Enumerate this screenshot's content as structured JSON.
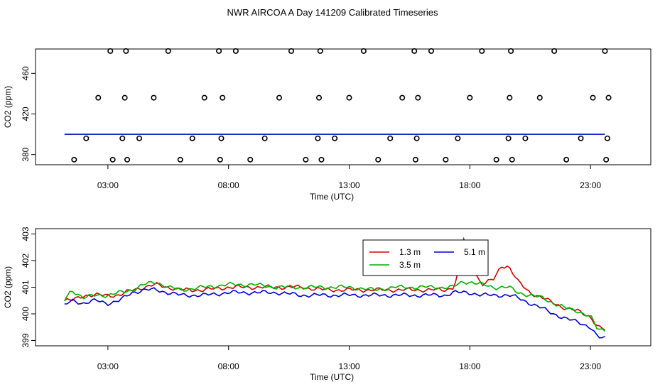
{
  "title": "NWR AIRCOA A  Day 141209  Calibrated Timeseries",
  "chart_data": [
    {
      "type": "scatter",
      "xlabel": "Time (UTC)",
      "ylabel": "CO2 (ppm)",
      "x_unit": "hours UTC",
      "xlim": [
        0,
        25.5
      ],
      "ylim": [
        370,
        484
      ],
      "x_ticks": [
        {
          "value": 3,
          "label": "03:00"
        },
        {
          "value": 8,
          "label": "08:00"
        },
        {
          "value": 13,
          "label": "13:00"
        },
        {
          "value": 18,
          "label": "18:00"
        },
        {
          "value": 23,
          "label": "23:00"
        }
      ],
      "y_ticks": [
        {
          "value": 380,
          "label": "380"
        },
        {
          "value": 420,
          "label": "420"
        },
        {
          "value": 460,
          "label": "460"
        }
      ],
      "flask_points": {
        "x": [
          1.6,
          2.1,
          2.6,
          3.1,
          3.2,
          3.6,
          3.7,
          3.75,
          3.8,
          4.3,
          4.9,
          5.5,
          6.0,
          6.5,
          7.0,
          7.6,
          7.65,
          7.7,
          7.75,
          8.3,
          8.9,
          9.5,
          10.1,
          10.6,
          11.2,
          11.7,
          11.75,
          11.8,
          11.85,
          12.4,
          13.0,
          13.6,
          14.2,
          14.7,
          15.2,
          15.7,
          15.75,
          15.8,
          15.85,
          16.4,
          17.0,
          17.5,
          18.0,
          18.5,
          19.1,
          19.6,
          19.65,
          19.7,
          19.75,
          20.3,
          20.9,
          21.5,
          22.0,
          22.6,
          23.1,
          23.6,
          23.65,
          23.7,
          23.75
        ],
        "y": [
          375,
          396,
          436,
          482,
          375,
          396,
          436,
          482,
          375,
          396,
          436,
          482,
          375,
          396,
          436,
          482,
          375,
          396,
          436,
          482,
          375,
          396,
          436,
          482,
          375,
          396,
          436,
          482,
          375,
          396,
          436,
          482,
          375,
          396,
          436,
          482,
          375,
          396,
          436,
          482,
          375,
          396,
          436,
          482,
          375,
          396,
          436,
          482,
          375,
          396,
          436,
          482,
          375,
          396,
          436,
          482,
          375,
          396,
          436
        ]
      }
    },
    {
      "type": "line",
      "xlabel": "Time (UTC)",
      "ylabel": "CO2 (ppm)",
      "x_unit": "hours UTC",
      "xlim": [
        0,
        25.5
      ],
      "ylim": [
        398.8,
        403.2
      ],
      "x_ticks": [
        {
          "value": 3,
          "label": "03:00"
        },
        {
          "value": 8,
          "label": "08:00"
        },
        {
          "value": 13,
          "label": "13:00"
        },
        {
          "value": 18,
          "label": "18:00"
        },
        {
          "value": 23,
          "label": "23:00"
        }
      ],
      "y_ticks": [
        {
          "value": 399,
          "label": "399"
        },
        {
          "value": 400,
          "label": "400"
        },
        {
          "value": 401,
          "label": "401"
        },
        {
          "value": 402,
          "label": "402"
        },
        {
          "value": 403,
          "label": "403"
        }
      ],
      "legend": "top-center",
      "x": [
        1.2,
        1.5,
        2.0,
        2.5,
        3.0,
        3.5,
        4.0,
        4.5,
        5.0,
        5.5,
        6.0,
        7.0,
        8.0,
        9.0,
        10.0,
        11.0,
        12.0,
        13.0,
        14.0,
        15.0,
        16.0,
        17.0,
        17.3,
        17.5,
        17.7,
        18.0,
        18.5,
        19.0,
        19.3,
        19.6,
        20.0,
        20.5,
        21.0,
        21.5,
        22.0,
        22.5,
        23.0,
        23.3,
        23.6
      ],
      "series": [
        {
          "name": "1.3 m",
          "color": "#d40000",
          "values": [
            400.5,
            400.5,
            400.7,
            400.7,
            400.7,
            400.7,
            400.9,
            401.0,
            401.1,
            401.0,
            400.9,
            400.9,
            401.0,
            401.0,
            401.0,
            401.0,
            400.9,
            400.9,
            400.9,
            400.9,
            400.9,
            400.9,
            401.0,
            401.4,
            403.0,
            401.9,
            401.1,
            401.3,
            401.8,
            401.8,
            401.2,
            400.8,
            400.6,
            400.4,
            400.2,
            400.1,
            399.9,
            399.5,
            399.4
          ]
        },
        {
          "name": "5.1 m",
          "color": "#0000d0",
          "values": [
            400.3,
            400.5,
            400.4,
            400.5,
            400.4,
            400.5,
            400.8,
            400.9,
            400.9,
            400.8,
            400.7,
            400.7,
            400.8,
            400.8,
            400.8,
            400.7,
            400.7,
            400.7,
            400.7,
            400.7,
            400.7,
            400.7,
            400.8,
            400.8,
            400.8,
            400.8,
            400.7,
            400.7,
            400.7,
            400.7,
            400.6,
            400.4,
            400.2,
            400.0,
            399.8,
            399.7,
            399.5,
            399.1,
            399.1
          ]
        },
        {
          "name": "3.5 m",
          "color": "#00b000",
          "values": [
            400.5,
            400.9,
            400.6,
            400.7,
            400.7,
            400.8,
            400.9,
            401.1,
            401.2,
            401.0,
            400.9,
            401.0,
            401.1,
            401.1,
            401.0,
            401.0,
            401.0,
            401.0,
            400.9,
            401.0,
            401.0,
            401.0,
            401.0,
            401.1,
            401.2,
            401.2,
            401.1,
            401.0,
            401.0,
            401.0,
            400.8,
            400.7,
            400.6,
            400.4,
            400.2,
            400.1,
            399.9,
            399.4,
            399.4
          ]
        }
      ]
    }
  ]
}
